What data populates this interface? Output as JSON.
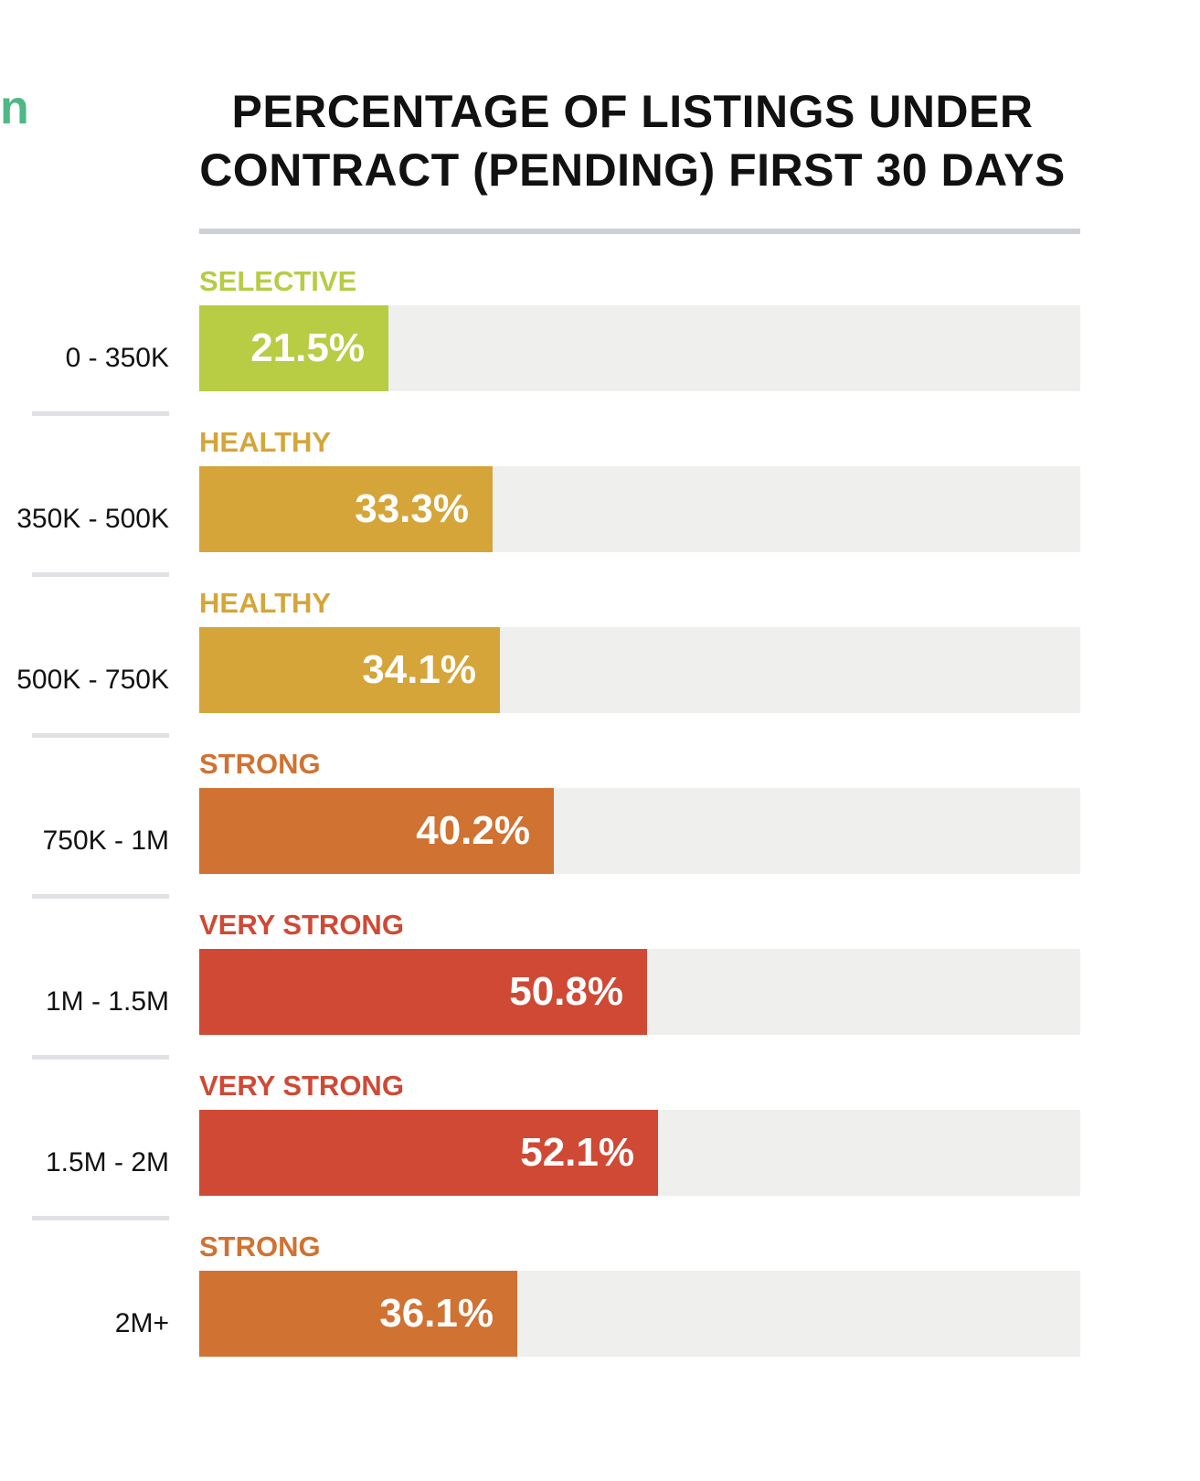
{
  "corner_text": "n",
  "chart_data": {
    "type": "bar",
    "orientation": "horizontal",
    "title": "PERCENTAGE OF LISTINGS UNDER CONTRACT (PENDING) FIRST 30 DAYS",
    "title_lines": [
      "PERCENTAGE OF LISTINGS UNDER",
      "CONTRACT (PENDING) FIRST 30 DAYS"
    ],
    "xlim": [
      0,
      100
    ],
    "unit": "%",
    "categories": [
      "0 - 350K",
      "350K - 500K",
      "500K - 750K",
      "750K - 1M",
      "1M - 1.5M",
      "1.5M - 2M",
      "2M+"
    ],
    "values": [
      21.5,
      33.3,
      34.1,
      40.2,
      50.8,
      52.1,
      36.1
    ],
    "value_labels": [
      "21.5%",
      "33.3%",
      "34.1%",
      "40.2%",
      "50.8%",
      "52.1%",
      "36.1%"
    ],
    "market_labels": [
      "SELECTIVE",
      "HEALTHY",
      "HEALTHY",
      "STRONG",
      "VERY STRONG",
      "VERY STRONG",
      "STRONG"
    ],
    "market_colors": {
      "SELECTIVE": "#b8cc44",
      "HEALTHY": "#d5a53a",
      "STRONG": "#cf7232",
      "VERY STRONG": "#cf4935"
    },
    "track_color": "#efefee",
    "grid": false,
    "legend": "none"
  }
}
